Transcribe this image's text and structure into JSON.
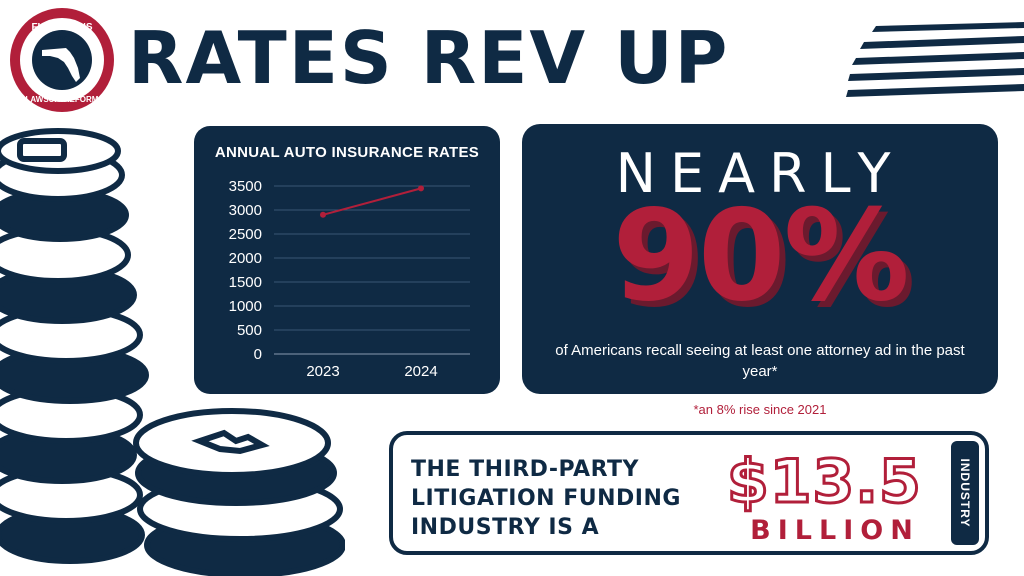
{
  "logo": {
    "line1": "FLORIDIANS",
    "line2": "for",
    "line3": "LAWSUIT REFORM"
  },
  "headline": "RATES REV UP",
  "colors": {
    "navy": "#0f2a44",
    "crimson": "#b11f3a",
    "white": "#ffffff"
  },
  "chart_data": {
    "type": "line",
    "title": "ANNUAL AUTO INSURANCE RATES",
    "categories": [
      "2023",
      "2024"
    ],
    "series": [
      {
        "values": [
          2900,
          3450
        ]
      }
    ],
    "ylim": [
      0,
      3500
    ],
    "yticks": [
      0,
      500,
      1000,
      1500,
      2000,
      2500,
      3000,
      3500
    ],
    "ytick_labels": [
      "0",
      "500",
      "1000",
      "1500",
      "2000",
      "2500",
      "3000",
      "3500"
    ],
    "grid": true,
    "line_color": "#b11f3a"
  },
  "stat": {
    "word": "NEARLY",
    "value": "90%",
    "description": "of Americans recall seeing at least one attorney ad in the past year*",
    "footnote": "*an 8% rise since 2021"
  },
  "funding": {
    "text": "THE THIRD-PARTY LITIGATION FUNDING INDUSTRY IS A",
    "amount": "$13.5",
    "unit": "BILLION",
    "tab_label": "INDUSTRY"
  }
}
